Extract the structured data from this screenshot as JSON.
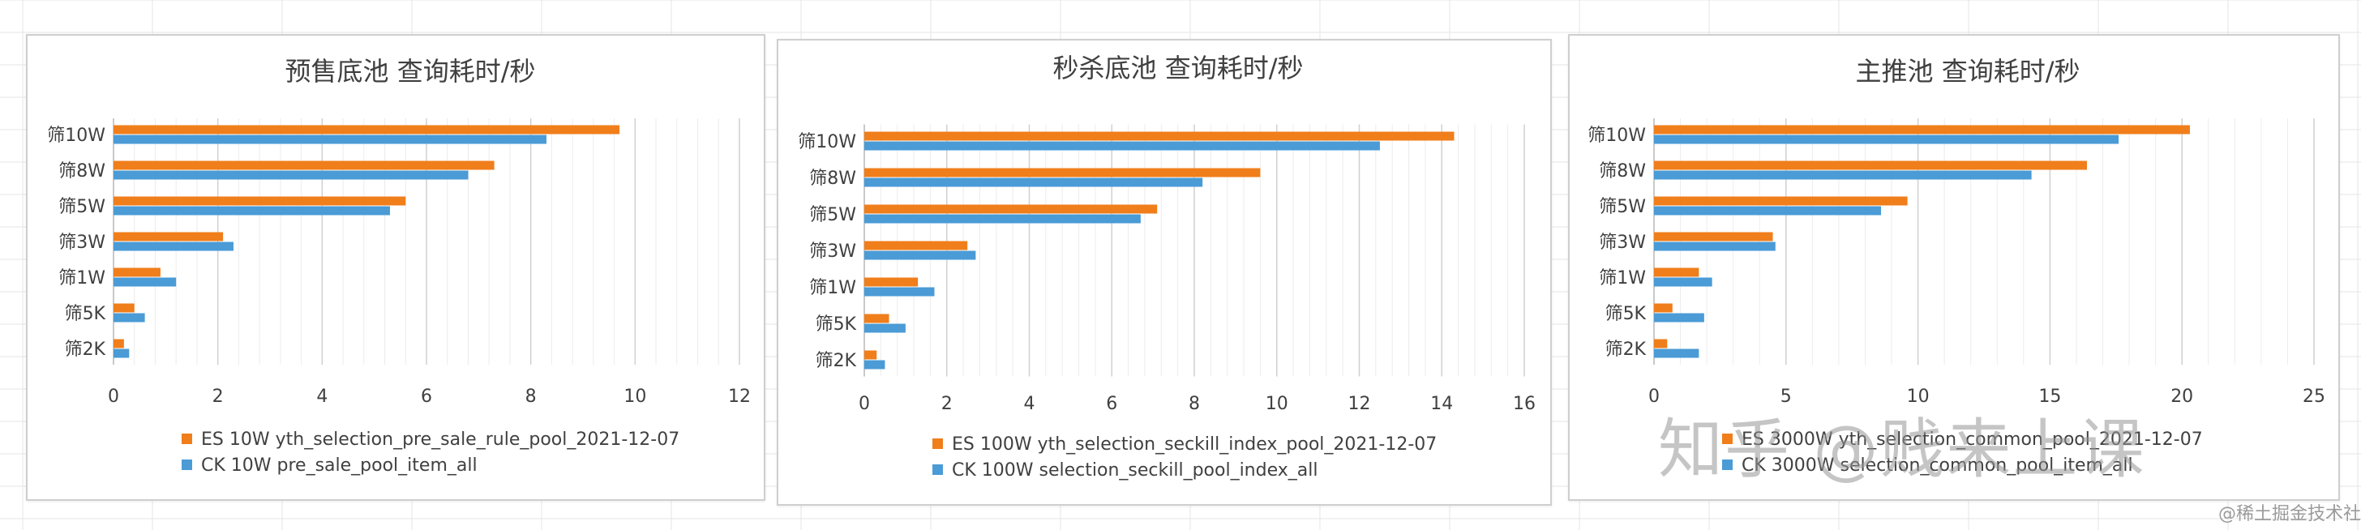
{
  "watermark": "知乎 @贱来上课",
  "site_tag": "@稀土掘金技术社区",
  "colors": {
    "es": "#F07E1B",
    "ck": "#4A9BD6",
    "grid": "#d9d9d9",
    "text": "#404040"
  },
  "chart_data": [
    {
      "type": "bar",
      "orientation": "horizontal",
      "title": "预售底池 查询耗时/秒",
      "categories": [
        "筛10W",
        "筛8W",
        "筛5W",
        "筛3W",
        "筛1W",
        "筛5K",
        "筛2K"
      ],
      "series": [
        {
          "name": "ES 10W yth_selection_pre_sale_rule_pool_2021-12-07",
          "values": [
            9.7,
            7.3,
            5.6,
            2.1,
            0.9,
            0.4,
            0.2
          ]
        },
        {
          "name": "CK 10W pre_sale_pool_item_all",
          "values": [
            8.3,
            6.8,
            5.3,
            2.3,
            1.2,
            0.6,
            0.3
          ]
        }
      ],
      "xlim": [
        0,
        12
      ],
      "xticks": [
        0,
        2,
        4,
        6,
        8,
        10,
        12
      ],
      "grid": true,
      "legend": "bottom"
    },
    {
      "type": "bar",
      "orientation": "horizontal",
      "title": "秒杀底池 查询耗时/秒",
      "categories": [
        "筛10W",
        "筛8W",
        "筛5W",
        "筛3W",
        "筛1W",
        "筛5K",
        "筛2K"
      ],
      "series": [
        {
          "name": "ES 100W yth_selection_seckill_index_pool_2021-12-07",
          "values": [
            14.3,
            9.6,
            7.1,
            2.5,
            1.3,
            0.6,
            0.3
          ]
        },
        {
          "name": "CK 100W selection_seckill_pool_index_all",
          "values": [
            12.5,
            8.2,
            6.7,
            2.7,
            1.7,
            1.0,
            0.5
          ]
        }
      ],
      "xlim": [
        0,
        16
      ],
      "xticks": [
        0,
        2,
        4,
        6,
        8,
        10,
        12,
        14,
        16
      ],
      "grid": true,
      "legend": "bottom"
    },
    {
      "type": "bar",
      "orientation": "horizontal",
      "title": "主推池 查询耗时/秒",
      "categories": [
        "筛10W",
        "筛8W",
        "筛5W",
        "筛3W",
        "筛1W",
        "筛5K",
        "筛2K"
      ],
      "series": [
        {
          "name": "ES 3000W yth_selection_common_pool_2021-12-07",
          "values": [
            20.3,
            16.4,
            9.6,
            4.5,
            1.7,
            0.7,
            0.5
          ]
        },
        {
          "name": "CK 3000W selection_common_pool_item_all",
          "values": [
            17.6,
            14.3,
            8.6,
            4.6,
            2.2,
            1.9,
            1.7
          ]
        }
      ],
      "xlim": [
        0,
        25
      ],
      "xticks": [
        0,
        5,
        10,
        15,
        20,
        25
      ],
      "grid": true,
      "legend": "bottom"
    }
  ]
}
